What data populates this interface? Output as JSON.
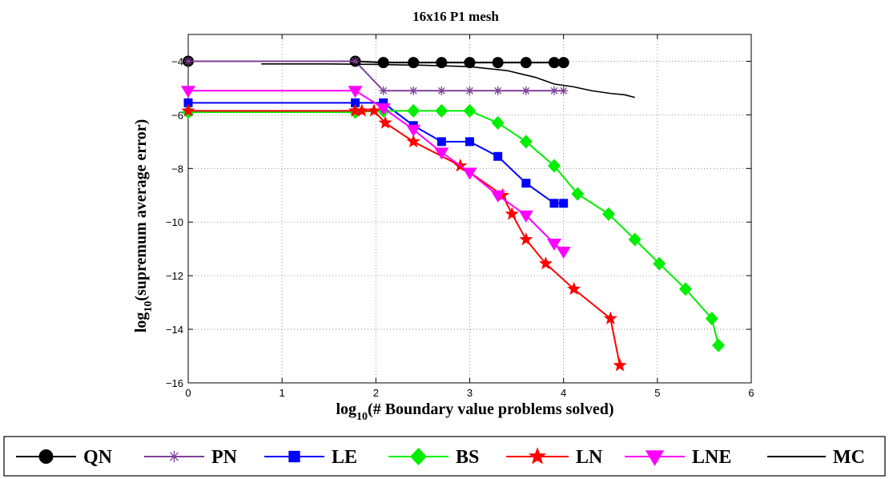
{
  "chart_data": {
    "type": "line",
    "title": "16x16 P1 mesh",
    "xlabel_main": "log",
    "xlabel_sub": "10",
    "xlabel_rest": "(# Boundary value problems solved)",
    "ylabel_main": "log",
    "ylabel_sub": "10",
    "ylabel_rest": "(supremum average error)",
    "xlim": [
      0,
      6
    ],
    "ylim": [
      -16,
      -3
    ],
    "xticks": [
      0,
      1,
      2,
      3,
      4,
      5,
      6
    ],
    "yticks": [
      -16,
      -14,
      -12,
      -10,
      -8,
      -6,
      -4
    ],
    "xtick_labels": [
      "0",
      "1",
      "2",
      "3",
      "4",
      "5",
      "6"
    ],
    "ytick_labels": [
      "−16",
      "−14",
      "−12",
      "−10",
      "−8",
      "−6",
      "−4"
    ],
    "grid": true,
    "legend_position": "bottom, outside, horizontal",
    "series": [
      {
        "name": "QN",
        "color": "#000000",
        "marker": "circle",
        "x": [
          0,
          1.78,
          2.08,
          2.4,
          2.7,
          3.0,
          3.3,
          3.6,
          3.9,
          4.0
        ],
        "y": [
          -4.0,
          -4.0,
          -4.05,
          -4.05,
          -4.05,
          -4.05,
          -4.05,
          -4.05,
          -4.05,
          -4.05
        ]
      },
      {
        "name": "PN",
        "color": "#7e3f98",
        "marker": "asterisk",
        "x": [
          0,
          1.78,
          2.08,
          2.4,
          2.7,
          3.0,
          3.3,
          3.6,
          3.9,
          4.0
        ],
        "y": [
          -4.0,
          -4.0,
          -5.1,
          -5.1,
          -5.1,
          -5.1,
          -5.1,
          -5.1,
          -5.1,
          -5.1
        ]
      },
      {
        "name": "LE",
        "color": "#0000ff",
        "marker": "square",
        "x": [
          0,
          1.78,
          2.08,
          2.4,
          2.7,
          3.0,
          3.3,
          3.6,
          3.9,
          4.0
        ],
        "y": [
          -5.55,
          -5.55,
          -5.55,
          -6.4,
          -7.0,
          -7.0,
          -7.55,
          -8.55,
          -9.3,
          -9.3
        ]
      },
      {
        "name": "BS",
        "color": "#00ee00",
        "marker": "diamond",
        "x": [
          0,
          1.78,
          2.08,
          2.4,
          2.7,
          3.0,
          3.3,
          3.6,
          3.9,
          4.15,
          4.48,
          4.76,
          5.02,
          5.3,
          5.58,
          5.65
        ],
        "y": [
          -5.9,
          -5.9,
          -5.85,
          -5.85,
          -5.85,
          -5.85,
          -6.3,
          -7.0,
          -7.9,
          -8.95,
          -9.7,
          -10.65,
          -11.55,
          -12.5,
          -13.6,
          -14.6
        ]
      },
      {
        "name": "LN",
        "color": "#ff0000",
        "marker": "star",
        "x": [
          0,
          1.78,
          1.85,
          1.98,
          2.1,
          2.4,
          2.9,
          3.35,
          3.45,
          3.6,
          3.81,
          4.11,
          4.5,
          4.6
        ],
        "y": [
          -5.85,
          -5.85,
          -5.85,
          -5.85,
          -6.3,
          -7.0,
          -7.9,
          -9.0,
          -9.7,
          -10.65,
          -11.55,
          -12.5,
          -13.6,
          -15.35
        ]
      },
      {
        "name": "LNE",
        "color": "#ff00ff",
        "marker": "triangle-down",
        "x": [
          0,
          1.78,
          2.08,
          2.4,
          2.7,
          3.0,
          3.3,
          3.6,
          3.9,
          4.0
        ],
        "y": [
          -5.1,
          -5.1,
          -5.75,
          -6.55,
          -7.4,
          -8.15,
          -9.0,
          -9.75,
          -10.8,
          -11.1
        ],
        "y_note": ""
      },
      {
        "name": "MC",
        "color": "#000000",
        "marker": "none",
        "x": [
          0.78,
          1.5,
          2.0,
          2.5,
          3.0,
          3.4,
          3.7,
          3.9,
          4.1,
          4.3,
          4.5,
          4.65,
          4.76
        ],
        "y": [
          -4.1,
          -4.1,
          -4.12,
          -4.15,
          -4.2,
          -4.35,
          -4.6,
          -4.85,
          -4.95,
          -5.1,
          -5.2,
          -5.25,
          -5.35
        ]
      }
    ]
  }
}
